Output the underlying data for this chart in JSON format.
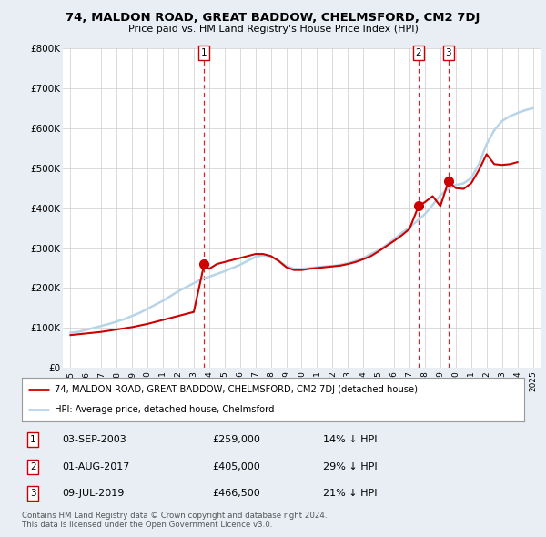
{
  "title": "74, MALDON ROAD, GREAT BADDOW, CHELMSFORD, CM2 7DJ",
  "subtitle": "Price paid vs. HM Land Registry's House Price Index (HPI)",
  "title_fontsize": 9.5,
  "subtitle_fontsize": 8,
  "xlim": [
    1994.5,
    2025.5
  ],
  "ylim": [
    0,
    800000
  ],
  "yticks": [
    0,
    100000,
    200000,
    300000,
    400000,
    500000,
    600000,
    700000,
    800000
  ],
  "ytick_labels": [
    "£0",
    "£100K",
    "£200K",
    "£300K",
    "£400K",
    "£500K",
    "£600K",
    "£700K",
    "£800K"
  ],
  "xticks": [
    1995,
    1996,
    1997,
    1998,
    1999,
    2000,
    2001,
    2002,
    2003,
    2004,
    2005,
    2006,
    2007,
    2008,
    2009,
    2010,
    2011,
    2012,
    2013,
    2014,
    2015,
    2016,
    2017,
    2018,
    2019,
    2020,
    2021,
    2022,
    2023,
    2024,
    2025
  ],
  "hpi_color": "#b8d4e8",
  "price_color": "#cc0000",
  "marker_color": "#cc0000",
  "vline_color": "#cc0000",
  "sale_dates": [
    2003.67,
    2017.58,
    2019.52
  ],
  "sale_prices": [
    259000,
    405000,
    466500
  ],
  "sale_labels": [
    "1",
    "2",
    "3"
  ],
  "legend_label_red": "74, MALDON ROAD, GREAT BADDOW, CHELMSFORD, CM2 7DJ (detached house)",
  "legend_label_blue": "HPI: Average price, detached house, Chelmsford",
  "table_rows": [
    {
      "num": "1",
      "date": "03-SEP-2003",
      "price": "£259,000",
      "hpi": "14% ↓ HPI"
    },
    {
      "num": "2",
      "date": "01-AUG-2017",
      "price": "£405,000",
      "hpi": "29% ↓ HPI"
    },
    {
      "num": "3",
      "date": "09-JUL-2019",
      "price": "£466,500",
      "hpi": "21% ↓ HPI"
    }
  ],
  "footnote": "Contains HM Land Registry data © Crown copyright and database right 2024.\nThis data is licensed under the Open Government Licence v3.0.",
  "background_color": "#e8eef4",
  "plot_bg_color": "#ffffff",
  "hpi_years": [
    1995,
    1995.5,
    1996,
    1996.5,
    1997,
    1997.5,
    1998,
    1998.5,
    1999,
    1999.5,
    2000,
    2000.5,
    2001,
    2001.5,
    2002,
    2002.5,
    2003,
    2003.5,
    2004,
    2004.5,
    2005,
    2005.5,
    2006,
    2006.5,
    2007,
    2007.5,
    2008,
    2008.5,
    2009,
    2009.5,
    2010,
    2010.5,
    2011,
    2011.5,
    2012,
    2012.5,
    2013,
    2013.5,
    2014,
    2014.5,
    2015,
    2015.5,
    2016,
    2016.5,
    2017,
    2017.5,
    2018,
    2018.5,
    2019,
    2019.5,
    2020,
    2020.5,
    2021,
    2021.5,
    2022,
    2022.5,
    2023,
    2023.5,
    2024,
    2024.5,
    2025
  ],
  "hpi_values": [
    88000,
    90000,
    95000,
    100000,
    105000,
    110000,
    116000,
    122000,
    130000,
    138000,
    148000,
    158000,
    168000,
    180000,
    192000,
    202000,
    212000,
    222000,
    228000,
    235000,
    242000,
    250000,
    258000,
    268000,
    278000,
    282000,
    278000,
    268000,
    255000,
    248000,
    248000,
    250000,
    252000,
    254000,
    255000,
    258000,
    262000,
    268000,
    275000,
    285000,
    295000,
    308000,
    322000,
    338000,
    352000,
    368000,
    385000,
    408000,
    432000,
    448000,
    458000,
    462000,
    475000,
    510000,
    560000,
    595000,
    618000,
    630000,
    638000,
    645000,
    650000
  ],
  "red_years": [
    1995,
    1995.5,
    1996,
    1996.5,
    1997,
    1997.5,
    1998,
    1998.5,
    1999,
    1999.5,
    2000,
    2000.5,
    2001,
    2001.5,
    2002,
    2002.5,
    2003,
    2003.67,
    2004,
    2004.5,
    2005,
    2005.5,
    2006,
    2006.5,
    2007,
    2007.5,
    2008,
    2008.5,
    2009,
    2009.5,
    2010,
    2010.5,
    2011,
    2011.5,
    2012,
    2012.5,
    2013,
    2013.5,
    2014,
    2014.5,
    2015,
    2015.5,
    2016,
    2016.5,
    2017,
    2017.58,
    2018,
    2018.5,
    2019,
    2019.52,
    2020,
    2020.5,
    2021,
    2021.5,
    2022,
    2022.5,
    2023,
    2023.5,
    2024
  ],
  "red_values": [
    82000,
    84000,
    86000,
    88000,
    90000,
    93000,
    96000,
    99000,
    102000,
    106000,
    110000,
    115000,
    120000,
    125000,
    130000,
    135000,
    140000,
    259000,
    248000,
    260000,
    265000,
    270000,
    275000,
    280000,
    285000,
    285000,
    280000,
    268000,
    252000,
    245000,
    245000,
    248000,
    250000,
    252000,
    254000,
    256000,
    260000,
    265000,
    272000,
    280000,
    292000,
    305000,
    318000,
    332000,
    348000,
    405000,
    415000,
    430000,
    405000,
    466500,
    450000,
    448000,
    462000,
    495000,
    535000,
    510000,
    508000,
    510000,
    515000
  ]
}
